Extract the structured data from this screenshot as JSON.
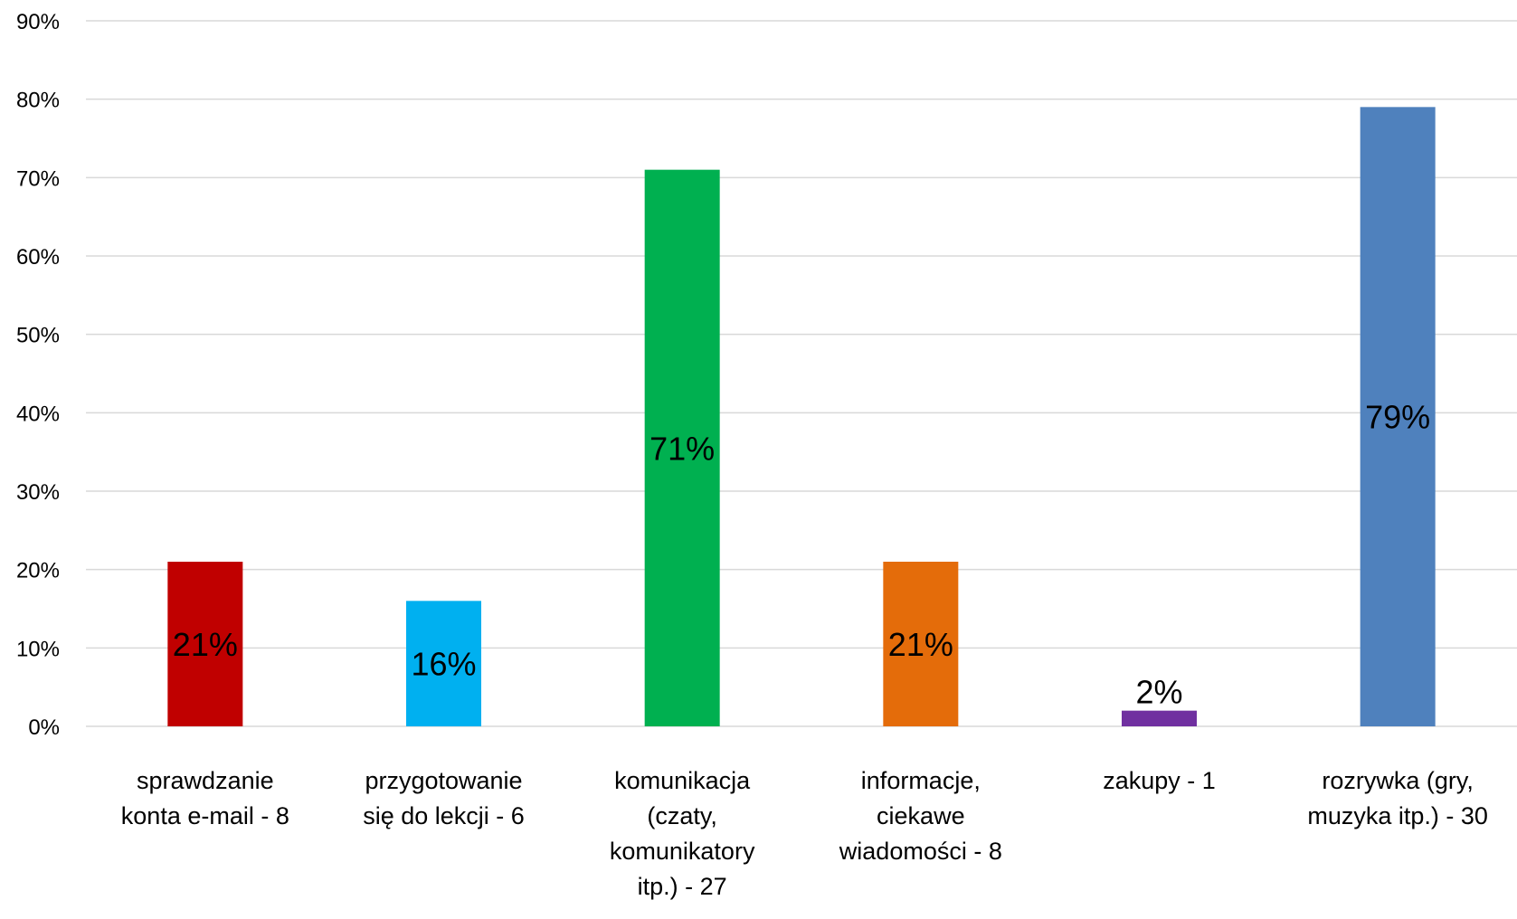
{
  "chart_data": {
    "type": "bar",
    "title": "",
    "xlabel": "",
    "ylabel": "",
    "ylim": [
      0,
      90
    ],
    "ytick_step": 10,
    "ytick_suffix": "%",
    "grid": true,
    "legend": "none",
    "categories": [
      [
        "sprawdzanie",
        "konta e-mail - 8"
      ],
      [
        "przygotowanie",
        "się do lekcji - 6"
      ],
      [
        "komunikacja",
        "(czaty,",
        "komunikatory",
        "itp.) - 27"
      ],
      [
        "informacje,",
        "ciekawe",
        "wiadomości - 8"
      ],
      [
        "zakupy - 1"
      ],
      [
        "rozrywka (gry,",
        "muzyka itp.) - 30"
      ]
    ],
    "values": [
      21,
      16,
      71,
      21,
      2,
      79
    ],
    "data_labels": [
      "21%",
      "16%",
      "71%",
      "21%",
      "2%",
      "79%"
    ],
    "colors": [
      "#c00000",
      "#00b0f0",
      "#00b050",
      "#e46c0a",
      "#7030a0",
      "#4f81bd"
    ]
  }
}
